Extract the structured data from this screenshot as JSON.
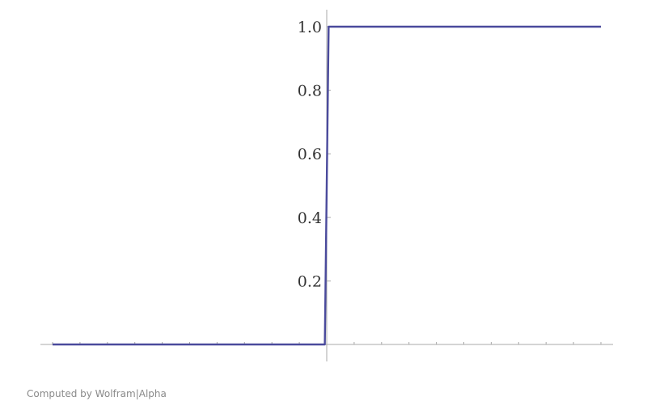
{
  "credit": "Computed by Wolfram|Alpha",
  "colors": {
    "curve": "#4a4a9c",
    "axis": "#a8a8a8",
    "tick_text": "#333333"
  },
  "chart_data": {
    "type": "line",
    "title": "",
    "xlabel": "",
    "ylabel": "",
    "xlim": [
      -1,
      1
    ],
    "ylim": [
      0,
      1
    ],
    "y_ticks": [
      0.2,
      0.4,
      0.6,
      0.8,
      1.0
    ],
    "y_tick_labels": [
      "0.2",
      "0.4",
      "0.6",
      "0.8",
      "1.0"
    ],
    "x_tick_labels": [],
    "grid": false,
    "series": [
      {
        "x": [
          -1,
          -0.007,
          0.0,
          0.007,
          1
        ],
        "y": [
          0,
          0,
          0.5,
          1,
          1
        ]
      }
    ]
  }
}
